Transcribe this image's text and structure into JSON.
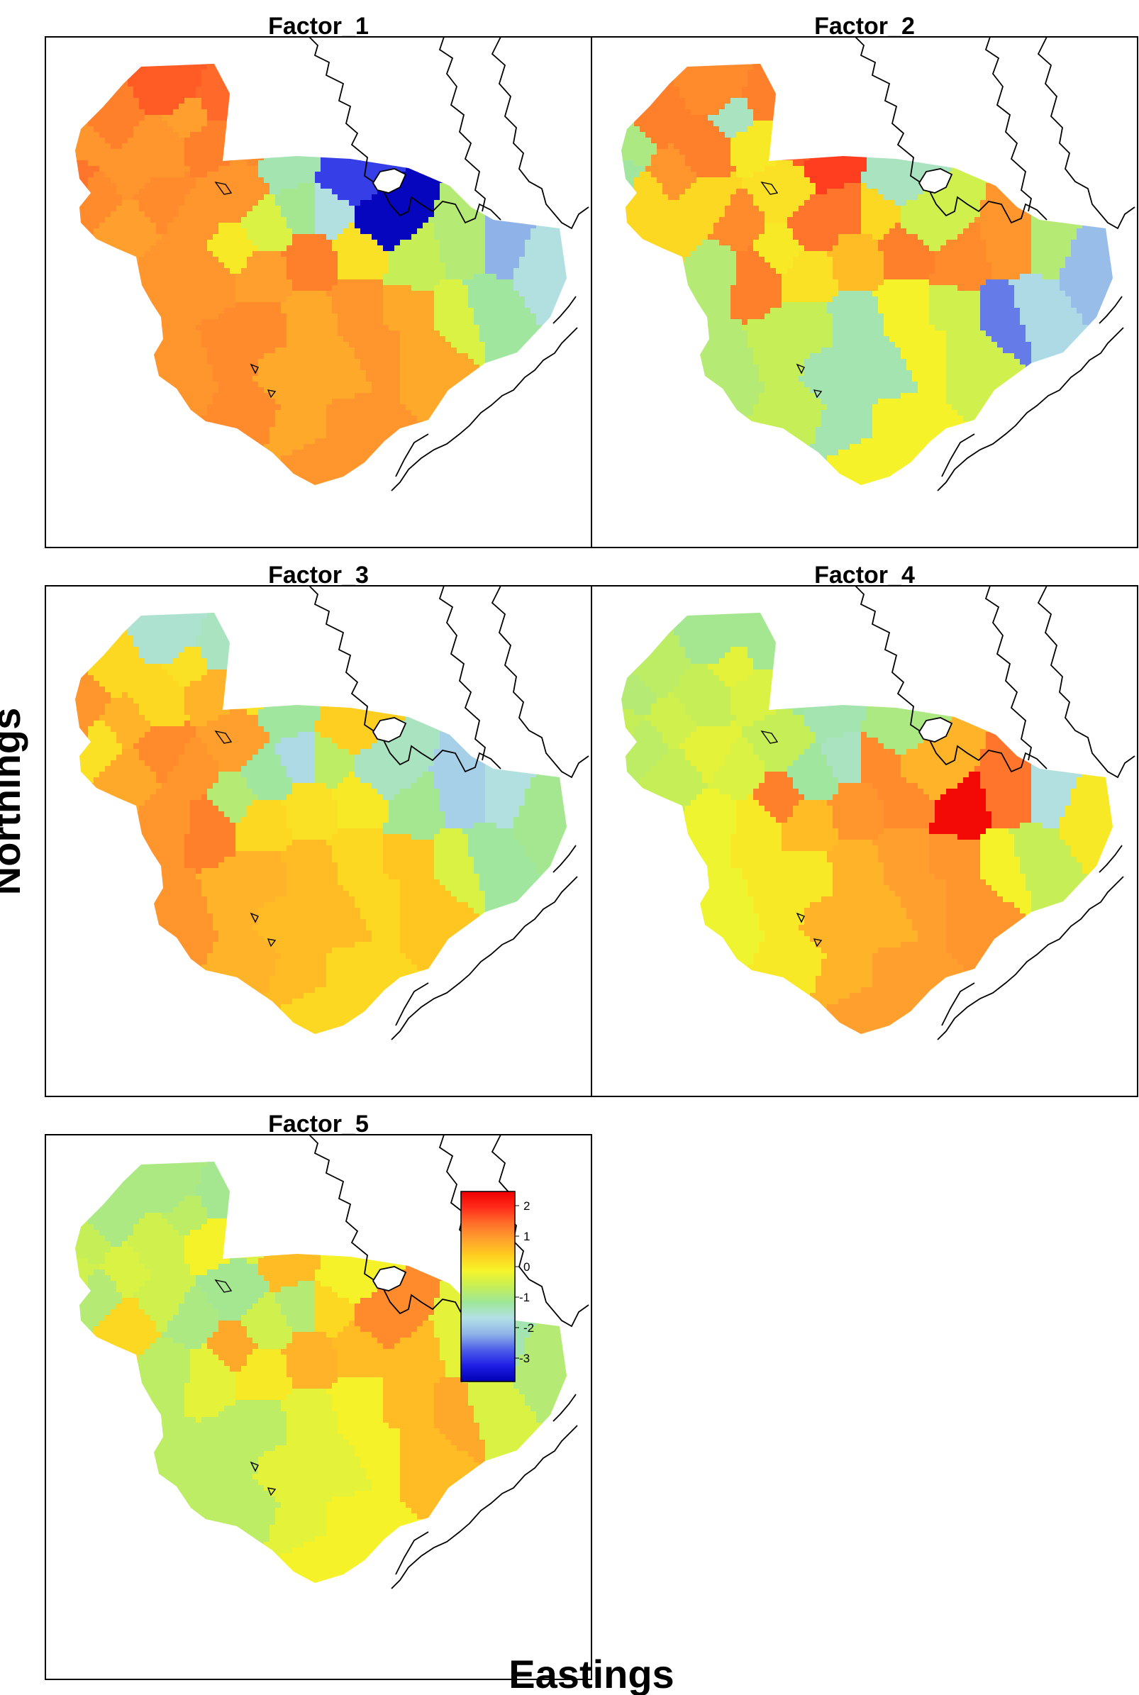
{
  "axes": {
    "x_label": "Eastings",
    "y_label": "Northings"
  },
  "panels": [
    {
      "title": "Factor_1",
      "region_values": [
        1.2,
        1.5,
        1.1,
        1.0,
        1.2,
        0.9,
        1.3,
        1.0,
        0.9,
        1.0,
        1.4,
        1.1,
        1.0,
        -1.1,
        -2.6,
        -0.3,
        -0.9,
        1.0,
        1.1,
        0.1,
        -1.4,
        -3.2,
        1.0,
        1.0,
        0.9,
        1.2,
        0.2,
        -0.5,
        -0.7,
        -1.9,
        1.1,
        0.8,
        1.0,
        0.8,
        -0.3,
        -1.0,
        -1.4
      ]
    },
    {
      "title": "Factor_2",
      "region_values": [
        1.2,
        1.1,
        0.3,
        1.2,
        0.1,
        0.3,
        -1.0,
        -0.8,
        -1.2,
        1.0,
        1.2,
        1.5,
        0.2,
        1.7,
        -1.2,
        1.3,
        1.3,
        1.1,
        0.3,
        0.1,
        0.3,
        -0.4,
        -0.7,
        1.2,
        0.2,
        0.6,
        1.2,
        1.1,
        1.0,
        -0.7,
        -0.5,
        -1.1,
        0.0,
        -0.4,
        -2.2,
        -1.5,
        -1.8
      ]
    },
    {
      "title": "Factor_3",
      "region_values": [
        0.3,
        -1.3,
        0.2,
        0.3,
        0.7,
        0.8,
        1.0,
        1.0,
        0.2,
        0.7,
        -1.2,
        0.2,
        0.9,
        -1.0,
        0.4,
        -1.0,
        -1.5,
        1.0,
        1.1,
        -0.7,
        -0.6,
        -1.2,
        1.0,
        1.2,
        0.3,
        0.2,
        0.1,
        -0.9,
        -1.6,
        -1.4,
        0.7,
        0.6,
        0.3,
        0.5,
        -0.3,
        -1.0,
        -0.9
      ]
    },
    {
      "title": "Factor_4",
      "region_values": [
        -0.6,
        -0.9,
        -0.6,
        -0.5,
        -0.3,
        -0.5,
        -0.5,
        -0.7,
        -0.2,
        -0.4,
        -0.9,
        -1.0,
        -0.5,
        -1.1,
        -0.8,
        -1.0,
        -1.2,
        -0.3,
        -0.2,
        1.2,
        1.1,
        0.7,
        -0.1,
        0.1,
        0.6,
        1.0,
        1.1,
        2.2,
        1.3,
        -1.4,
        0.1,
        0.7,
        0.9,
        1.0,
        0.0,
        -0.5,
        0.1
      ]
    },
    {
      "title": "Factor_5",
      "region_values": [
        -0.8,
        -0.8,
        -0.7,
        -0.4,
        0.0,
        0.3,
        -0.4,
        -0.5,
        -0.6,
        -0.3,
        -0.9,
        -0.3,
        -0.9,
        0.6,
        0.0,
        -0.4,
        -0.7,
        -0.8,
        -0.4,
        0.8,
        0.3,
        1.1,
        -0.6,
        -0.2,
        0.1,
        0.7,
        0.6,
        0.6,
        -0.2,
        -1.1,
        -0.6,
        -0.2,
        0.0,
        0.6,
        0.8,
        -0.3,
        -0.7
      ]
    }
  ],
  "legend": {
    "ticks": [
      "2",
      "1",
      "0",
      "-1",
      "-2",
      "-3"
    ],
    "color_scale": [
      "#0000b3",
      "#1e1ee6",
      "#4d5ee8",
      "#8fb3e8",
      "#b3e0e6",
      "#9ee69a",
      "#c6ef57",
      "#f5f52a",
      "#ffcc1f",
      "#ffa02e",
      "#ff6e2a",
      "#ff2a1a",
      "#f00000"
    ]
  },
  "colors": {
    "panel_border": "#000000",
    "coastline": "#000000",
    "background": "#ffffff"
  }
}
